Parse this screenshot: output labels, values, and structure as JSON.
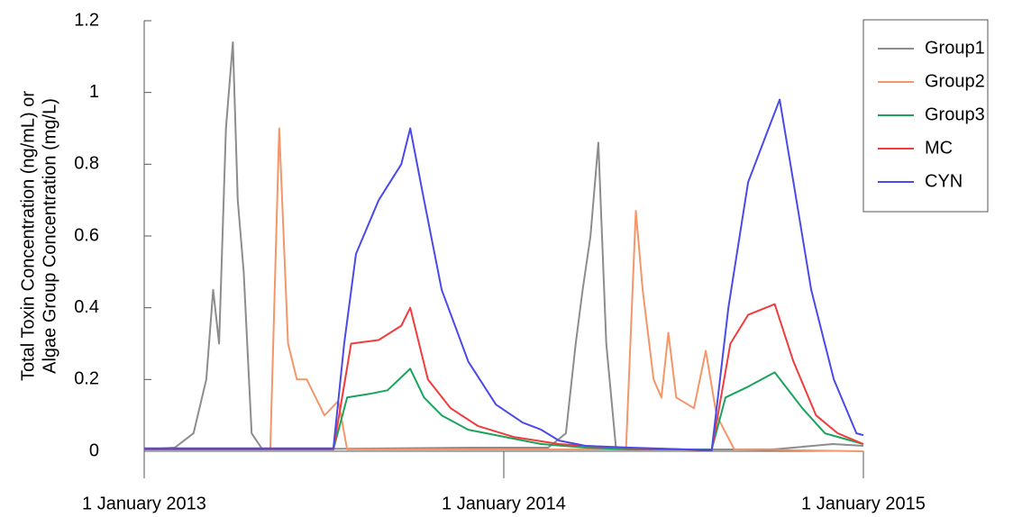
{
  "chart_data": {
    "type": "line",
    "ylabel": [
      "Total Toxin Concentration (ng/mL) or",
      "Algae Group Concentration (mg/L)"
    ],
    "xlim": [
      "2013-01-01",
      "2015-01-01"
    ],
    "xticks": [
      {
        "value": "2013-01-01",
        "label": "1 January 2013"
      },
      {
        "value": "2014-01-01",
        "label": "1 January 2014"
      },
      {
        "value": "2015-01-01",
        "label": "1 January 2015"
      }
    ],
    "ylim": [
      0,
      1.2
    ],
    "yticks": [
      0,
      0.2,
      0.4,
      0.6,
      0.8,
      1,
      1.2
    ],
    "legend": "top-right",
    "series": [
      {
        "name": "Group1",
        "color": "#8c8c8c",
        "x": [
          "2013-01-01",
          "2013-02-01",
          "2013-02-20",
          "2013-03-05",
          "2013-03-12",
          "2013-03-18",
          "2013-03-25",
          "2013-04-01",
          "2013-04-06",
          "2013-04-12",
          "2013-04-20",
          "2013-05-01",
          "2013-12-01",
          "2014-02-15",
          "2014-03-05",
          "2014-03-15",
          "2014-03-22",
          "2014-03-30",
          "2014-04-07",
          "2014-04-15",
          "2014-04-25",
          "2014-10-01",
          "2014-12-01",
          "2015-01-01"
        ],
        "values": [
          0.005,
          0.01,
          0.05,
          0.2,
          0.45,
          0.3,
          0.9,
          1.14,
          0.7,
          0.5,
          0.05,
          0.005,
          0.01,
          0.01,
          0.05,
          0.3,
          0.45,
          0.6,
          0.86,
          0.3,
          0.005,
          0.005,
          0.02,
          0.015
        ]
      },
      {
        "name": "Group2",
        "color": "#f4956a",
        "x": [
          "2013-01-01",
          "2013-05-09",
          "2013-05-18",
          "2013-05-27",
          "2013-06-05",
          "2013-06-15",
          "2013-07-03",
          "2013-07-17",
          "2013-07-26",
          "2014-05-05",
          "2014-05-15",
          "2014-05-22",
          "2014-06-02",
          "2014-06-10",
          "2014-06-17",
          "2014-06-25",
          "2014-07-13",
          "2014-07-25",
          "2014-08-05",
          "2014-08-23",
          "2015-01-01"
        ],
        "values": [
          0.005,
          0.005,
          0.9,
          0.3,
          0.2,
          0.2,
          0.1,
          0.14,
          0.005,
          0.005,
          0.67,
          0.45,
          0.2,
          0.15,
          0.33,
          0.15,
          0.12,
          0.28,
          0.1,
          0.005,
          0
        ]
      },
      {
        "name": "Group3",
        "color": "#1aa35a",
        "x": [
          "2013-01-01",
          "2013-07-12",
          "2013-07-26",
          "2013-08-18",
          "2013-09-05",
          "2013-09-28",
          "2013-10-12",
          "2013-10-30",
          "2013-11-26",
          "2014-01-02",
          "2014-02-08",
          "2014-03-25",
          "2014-05-10",
          "2014-07-31",
          "2014-08-14",
          "2014-09-06",
          "2014-10-03",
          "2014-10-31",
          "2014-11-23",
          "2015-01-01"
        ],
        "values": [
          0.005,
          0.005,
          0.15,
          0.16,
          0.17,
          0.23,
          0.15,
          0.1,
          0.06,
          0.04,
          0.02,
          0.01,
          0.005,
          0.005,
          0.15,
          0.18,
          0.22,
          0.12,
          0.05,
          0.02
        ]
      },
      {
        "name": "MC",
        "color": "#f03c3c",
        "x": [
          "2013-01-01",
          "2013-07-12",
          "2013-07-30",
          "2013-08-27",
          "2013-09-19",
          "2013-09-28",
          "2013-10-16",
          "2013-11-08",
          "2013-12-06",
          "2014-01-11",
          "2014-02-26",
          "2014-04-22",
          "2014-07-31",
          "2014-08-19",
          "2014-09-06",
          "2014-10-03",
          "2014-10-22",
          "2014-11-14",
          "2014-12-06",
          "2015-01-01"
        ],
        "values": [
          0.005,
          0.005,
          0.3,
          0.31,
          0.35,
          0.4,
          0.2,
          0.12,
          0.07,
          0.04,
          0.02,
          0.01,
          0.003,
          0.3,
          0.38,
          0.41,
          0.25,
          0.1,
          0.05,
          0.02
        ]
      },
      {
        "name": "CYN",
        "color": "#4a4ae8",
        "x": [
          "2013-01-01",
          "2013-07-12",
          "2013-07-23",
          "2013-08-04",
          "2013-08-27",
          "2013-09-19",
          "2013-09-28",
          "2013-10-12",
          "2013-10-30",
          "2013-11-26",
          "2013-12-24",
          "2014-01-20",
          "2014-02-08",
          "2014-02-26",
          "2014-03-25",
          "2014-05-10",
          "2014-07-31",
          "2014-08-17",
          "2014-09-06",
          "2014-09-24",
          "2014-10-08",
          "2014-10-22",
          "2014-11-09",
          "2014-12-02",
          "2014-12-25",
          "2015-01-01"
        ],
        "values": [
          0.008,
          0.008,
          0.3,
          0.55,
          0.7,
          0.8,
          0.9,
          0.7,
          0.45,
          0.25,
          0.13,
          0.08,
          0.06,
          0.03,
          0.015,
          0.01,
          0.003,
          0.4,
          0.75,
          0.88,
          0.98,
          0.75,
          0.45,
          0.2,
          0.05,
          0.045
        ]
      }
    ]
  }
}
